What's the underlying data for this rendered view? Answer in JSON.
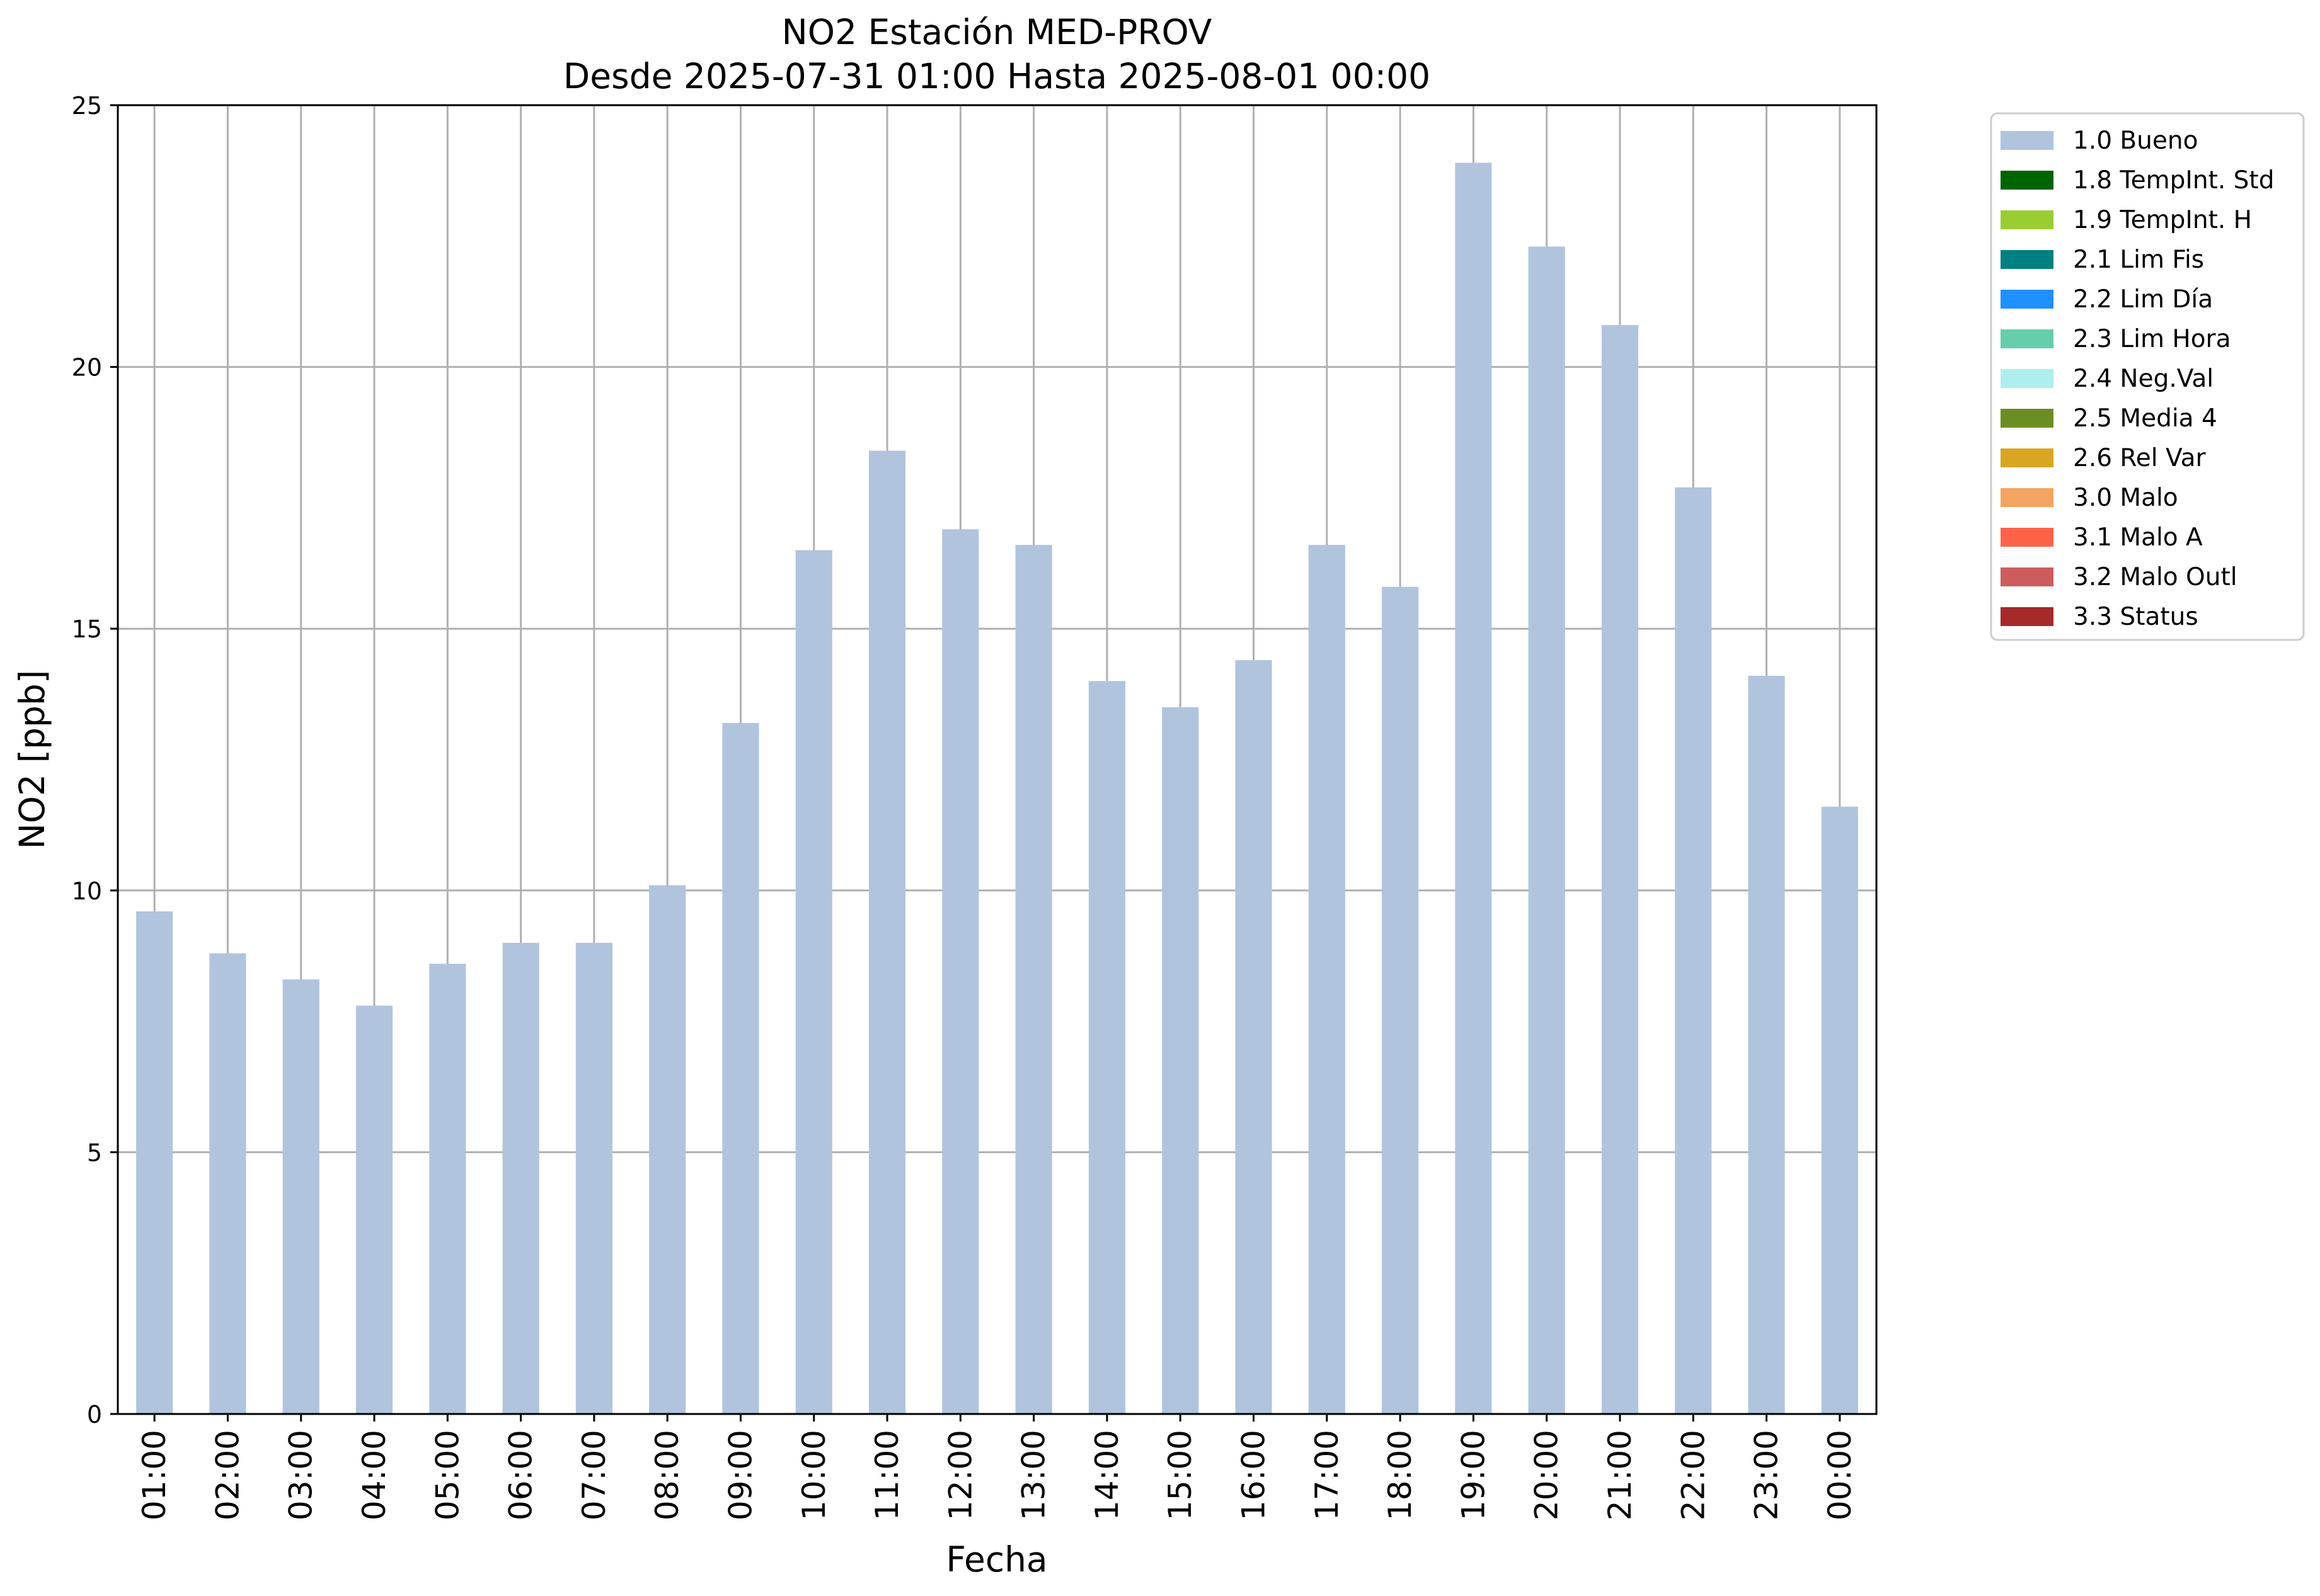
{
  "chart_data": {
    "type": "bar",
    "title": "NO2 Estación MED-PROV",
    "subtitle": "Desde 2025-07-31 01:00 Hasta 2025-08-01 00:00",
    "xlabel": "Fecha",
    "ylabel": "NO2 [ppb]",
    "ylim": [
      0,
      25
    ],
    "yticks": [
      "0",
      "5",
      "10",
      "15",
      "20",
      "25"
    ],
    "grid": true,
    "legend_position": "outside-top-right",
    "categories": [
      "01:00",
      "02:00",
      "03:00",
      "04:00",
      "05:00",
      "06:00",
      "07:00",
      "08:00",
      "09:00",
      "10:00",
      "11:00",
      "12:00",
      "13:00",
      "14:00",
      "15:00",
      "16:00",
      "17:00",
      "18:00",
      "19:00",
      "20:00",
      "21:00",
      "22:00",
      "23:00",
      "00:00"
    ],
    "series": [
      {
        "name": "1.0 Bueno",
        "color": "#b0c4de",
        "values": [
          9.6,
          8.8,
          8.3,
          7.8,
          8.6,
          9.0,
          9.0,
          10.1,
          13.2,
          16.5,
          18.4,
          16.9,
          16.6,
          14.0,
          13.5,
          14.4,
          16.6,
          15.8,
          23.9,
          22.3,
          20.8,
          17.7,
          14.1,
          11.6
        ]
      }
    ],
    "legend": [
      {
        "label": "1.0 Bueno",
        "color": "#b0c4de"
      },
      {
        "label": "1.8 TempInt. Std",
        "color": "#006400"
      },
      {
        "label": "1.9 TempInt. H",
        "color": "#9acd32"
      },
      {
        "label": "2.1 Lim Fis",
        "color": "#008080"
      },
      {
        "label": "2.2 Lim Día",
        "color": "#1e90ff"
      },
      {
        "label": "2.3 Lim Hora",
        "color": "#66cdaa"
      },
      {
        "label": "2.4 Neg.Val",
        "color": "#afeeee"
      },
      {
        "label": "2.5 Media 4",
        "color": "#6b8e23"
      },
      {
        "label": "2.6 Rel Var",
        "color": "#daa520"
      },
      {
        "label": "3.0 Malo",
        "color": "#f4a460"
      },
      {
        "label": "3.1 Malo A",
        "color": "#ff6347"
      },
      {
        "label": "3.2 Malo Outl",
        "color": "#cd5c5c"
      },
      {
        "label": "3.3 Status",
        "color": "#a52a2a"
      }
    ]
  }
}
